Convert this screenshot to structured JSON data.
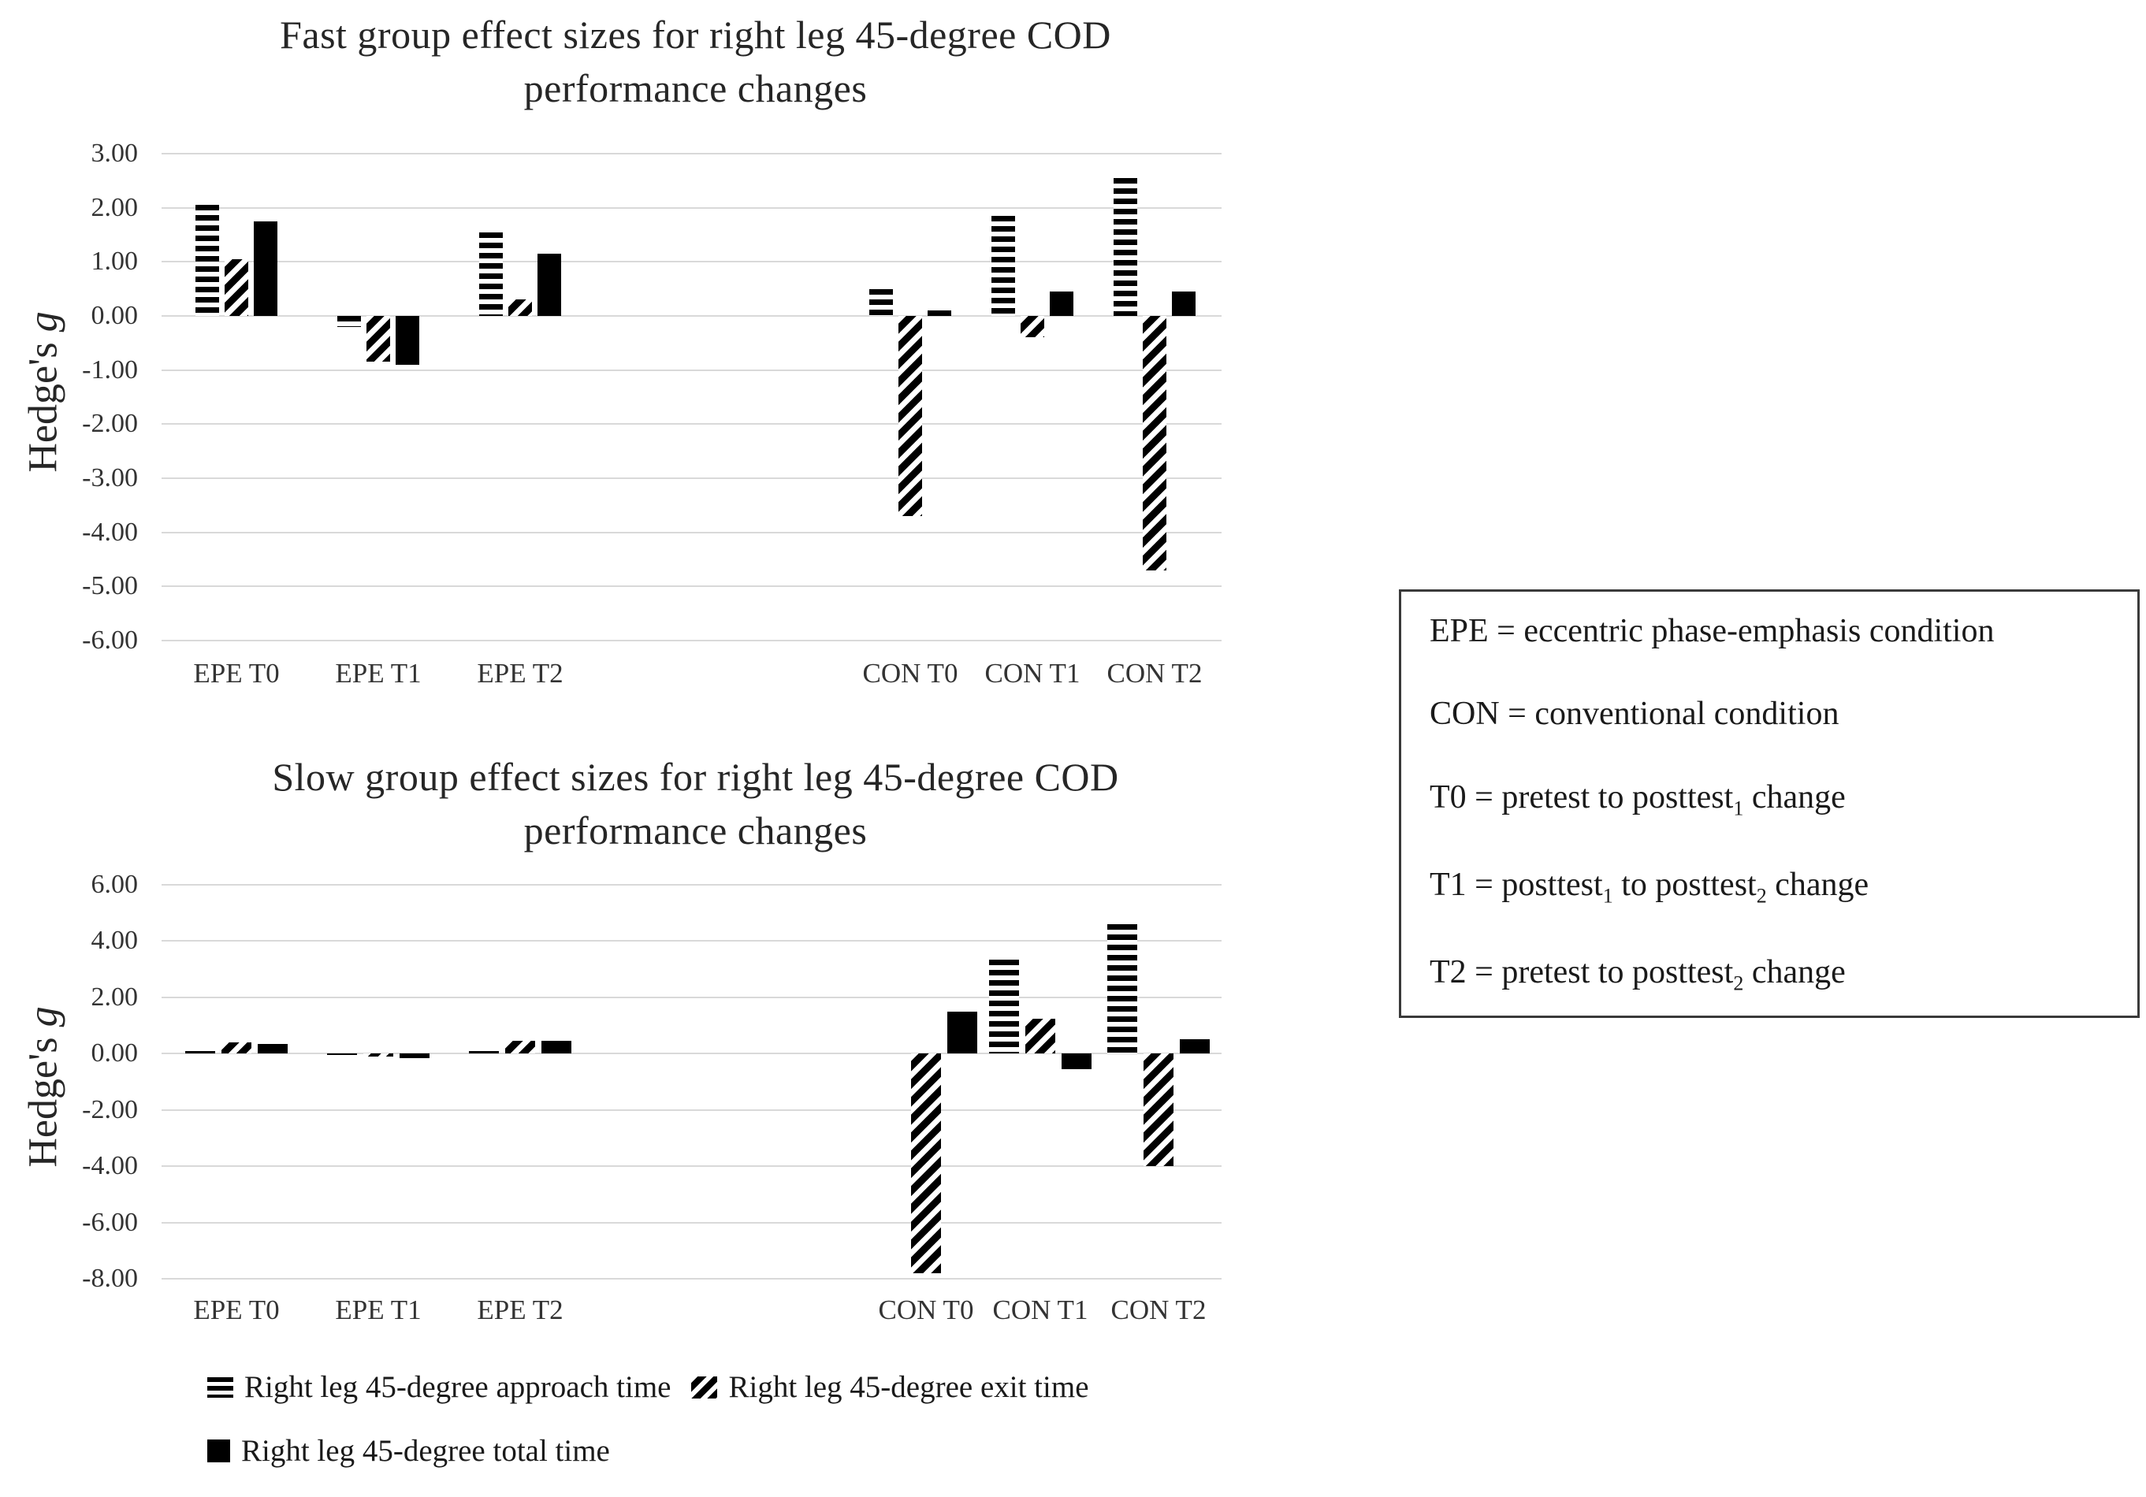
{
  "figure": {
    "series_legend": {
      "approach_label": "Right leg 45-degree approach time",
      "exit_label": "Right leg 45-degree exit time",
      "total_label": "Right leg 45-degree total time"
    },
    "legend_box": {
      "lines": [
        {
          "segments": [
            {
              "t": "EPE = eccentric phase-emphasis condition"
            }
          ]
        },
        {
          "segments": [
            {
              "t": "CON = conventional condition"
            }
          ]
        },
        {
          "segments": [
            {
              "t": "T0 = pretest to posttest"
            },
            {
              "sub": "1"
            },
            {
              "t": " change"
            }
          ]
        },
        {
          "segments": [
            {
              "t": "T1 = posttest"
            },
            {
              "sub": "1"
            },
            {
              "t": " to posttest"
            },
            {
              "sub": "2"
            },
            {
              "t": " change"
            }
          ]
        },
        {
          "segments": [
            {
              "t": "T2 = pretest to posttest"
            },
            {
              "sub": "2"
            },
            {
              "t": " change"
            }
          ]
        }
      ]
    }
  },
  "chart_data": [
    {
      "type": "bar",
      "title_lines": [
        "Fast group effect sizes for right leg 45-degree COD",
        "performance changes"
      ],
      "ylabel": "Hedge's g",
      "ylabel_segments": [
        {
          "t": "Hedge's "
        },
        {
          "i": "g"
        }
      ],
      "xlabel": "",
      "ylim": [
        -6,
        3
      ],
      "ytick_step": 1,
      "yticks": [
        "3.00",
        "2.00",
        "1.00",
        "0.00",
        "-1.00",
        "-2.00",
        "-3.00",
        "-4.00",
        "-5.00",
        "-6.00"
      ],
      "grid": true,
      "bar_color": "#000000",
      "gridline_color": "#d9d9d9",
      "categories": [
        "EPE T0",
        "EPE T1",
        "EPE T2",
        "CON T0",
        "CON T1",
        "CON T2"
      ],
      "series": [
        {
          "name": "Right leg 45-degree approach time",
          "pattern": "horizontal-stripes",
          "values": [
            2.05,
            -0.2,
            1.55,
            0.5,
            1.85,
            2.55
          ]
        },
        {
          "name": "Right leg 45-degree exit time",
          "pattern": "diagonal-stripes",
          "values": [
            1.05,
            -0.85,
            0.3,
            -3.7,
            -0.4,
            -4.7
          ]
        },
        {
          "name": "Right leg 45-degree total time",
          "pattern": "solid",
          "values": [
            1.75,
            -0.9,
            1.15,
            0.1,
            0.45,
            0.45
          ]
        }
      ]
    },
    {
      "type": "bar",
      "title_lines": [
        "Slow group effect sizes for right leg 45-degree COD",
        "performance changes"
      ],
      "ylabel": "Hedge's g",
      "ylabel_segments": [
        {
          "t": "Hedge's "
        },
        {
          "i": "g"
        }
      ],
      "xlabel": "",
      "ylim": [
        -8,
        6
      ],
      "ytick_step": 2,
      "yticks": [
        "6.00",
        "4.00",
        "2.00",
        "0.00",
        "-2.00",
        "-4.00",
        "-6.00",
        "-8.00"
      ],
      "grid": true,
      "bar_color": "#000000",
      "gridline_color": "#d9d9d9",
      "categories": [
        "EPE T0",
        "EPE T1",
        "EPE T2",
        "CON T0",
        "CON T1",
        "CON T2"
      ],
      "series": [
        {
          "name": "Right leg 45-degree approach time",
          "pattern": "horizontal-stripes",
          "values": [
            0.1,
            -0.05,
            0.1,
            0.0,
            3.35,
            4.6
          ]
        },
        {
          "name": "Right leg 45-degree exit time",
          "pattern": "diagonal-stripes",
          "values": [
            0.4,
            -0.1,
            0.45,
            -7.8,
            1.25,
            -4.0
          ]
        },
        {
          "name": "Right leg 45-degree total time",
          "pattern": "solid",
          "values": [
            0.35,
            -0.15,
            0.45,
            1.5,
            -0.55,
            0.5
          ]
        }
      ]
    }
  ]
}
